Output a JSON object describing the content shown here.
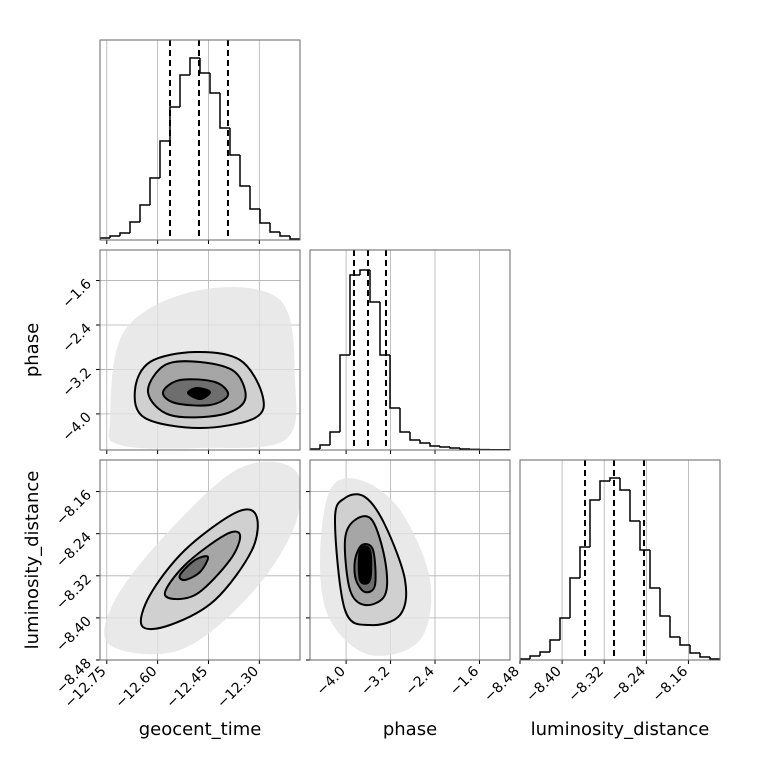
{
  "chart_data": {
    "type": "corner",
    "grid": true,
    "hist_color": "#000000",
    "quantile_color": "#000000",
    "contour_colors": [
      "#e4e4e4",
      "#d0d0d0",
      "#a6a6a6",
      "#6e6e6e",
      "#000000"
    ],
    "hist_ylim": [
      0,
      100
    ],
    "parameters": [
      {
        "name": "geocent_time",
        "lim": [
          -12.77,
          -12.18
        ],
        "ticks": [
          {
            "value": -12.75,
            "label": "−12.75"
          },
          {
            "value": -12.6,
            "label": "−12.60"
          },
          {
            "value": -12.45,
            "label": "−12.45"
          },
          {
            "value": -12.3,
            "label": "−12.30"
          }
        ],
        "bins": [
          -12.77,
          -12.7405,
          -12.711,
          -12.6815,
          -12.652,
          -12.6225,
          -12.593,
          -12.5635,
          -12.534,
          -12.5045,
          -12.475,
          -12.4455,
          -12.416,
          -12.3865,
          -12.357,
          -12.3275,
          -12.298,
          -12.2685,
          -12.239,
          -12.2095,
          -12.18
        ],
        "counts": [
          1,
          2,
          3.5,
          9,
          17.5,
          31,
          49.5,
          66.5,
          82.5,
          91,
          83.5,
          73.5,
          56,
          42.5,
          27,
          15.5,
          8.5,
          4,
          2,
          0.5
        ],
        "quantiles": [
          -12.5635,
          -12.478,
          -12.3925
        ]
      },
      {
        "name": "phase",
        "lim": [
          -4.65,
          -1.05
        ],
        "ticks": [
          {
            "value": -4.0,
            "label": "−4.0"
          },
          {
            "value": -3.2,
            "label": "−3.2"
          },
          {
            "value": -2.4,
            "label": "−2.4"
          },
          {
            "value": -1.6,
            "label": "−1.6"
          }
        ],
        "bins": [
          -4.65,
          -4.47,
          -4.29,
          -4.11,
          -3.93,
          -3.75,
          -3.57,
          -3.39,
          -3.21,
          -3.03,
          -2.85,
          -2.67,
          -2.49,
          -2.31,
          -2.13,
          -1.95,
          -1.77,
          -1.59,
          -1.41,
          -1.23,
          -1.05
        ],
        "counts": [
          0.5,
          2.5,
          9,
          47.5,
          87.5,
          90,
          74,
          47.5,
          21,
          9,
          5,
          3.5,
          2,
          1.5,
          1,
          0.5,
          0.3,
          0.2,
          0.1,
          0.1
        ],
        "quantiles": [
          -3.858,
          -3.606,
          -3.282
        ]
      },
      {
        "name": "luminosity_distance",
        "lim": [
          -8.48,
          -8.1
        ],
        "ticks": [
          {
            "value": -8.48,
            "label": "−8.48"
          },
          {
            "value": -8.4,
            "label": "−8.40"
          },
          {
            "value": -8.32,
            "label": "−8.32"
          },
          {
            "value": -8.24,
            "label": "−8.24"
          },
          {
            "value": -8.16,
            "label": "−8.16"
          }
        ],
        "bins": [
          -8.48,
          -8.461,
          -8.442,
          -8.423,
          -8.404,
          -8.385,
          -8.366,
          -8.347,
          -8.328,
          -8.309,
          -8.29,
          -8.271,
          -8.252,
          -8.233,
          -8.214,
          -8.195,
          -8.176,
          -8.157,
          -8.138,
          -8.119,
          -8.1
        ],
        "counts": [
          0.5,
          2,
          4,
          10,
          21,
          41,
          56.5,
          80,
          89.5,
          91,
          85,
          69.5,
          55,
          36,
          22,
          11.5,
          7.5,
          3.5,
          1.5,
          0.5
        ],
        "quantiles": [
          -8.3565,
          -8.3014,
          -8.2444
        ]
      }
    ],
    "pairs": [
      {
        "contours": [
          {
            "x": [
              -12.7405,
              -12.6963,
              -12.475,
              -12.239,
              -12.1948,
              -12.2243,
              -12.475,
              -12.711
            ],
            "y": [
              -4.11,
              -2.49,
              -1.77,
              -1.95,
              -3.39,
              -4.47,
              -4.614,
              -4.56
            ]
          },
          {
            "x": [
              -12.6668,
              -12.6225,
              -12.4898,
              -12.357,
              -12.291,
              -12.3128,
              -12.475,
              -12.6373
            ],
            "y": [
              -3.57,
              -3.066,
              -2.886,
              -3.03,
              -3.66,
              -4.074,
              -4.254,
              -4.074
            ]
          },
          {
            "x": [
              -12.6284,
              -12.5783,
              -12.475,
              -12.3718,
              -12.3423,
              -12.416,
              -12.5635
            ],
            "y": [
              -3.606,
              -3.12,
              -3.066,
              -3.246,
              -3.75,
              -4.02,
              -4.02
            ]
          },
          {
            "x": [
              -12.584,
              -12.534,
              -12.4308,
              -12.3924,
              -12.4455,
              -12.5488
            ],
            "y": [
              -3.606,
              -3.39,
              -3.426,
              -3.66,
              -3.84,
              -3.804
            ]
          },
          {
            "x": [
              -12.5104,
              -12.4839,
              -12.4455,
              -12.475
            ],
            "y": [
              -3.624,
              -3.534,
              -3.606,
              -3.732
            ]
          }
        ]
      },
      {
        "contours": [
          {
            "x": [
              -12.7405,
              -12.7258,
              -12.5635,
              -12.357,
              -12.1948,
              -12.1948,
              -12.3275,
              -12.534
            ],
            "y": [
              -8.4515,
              -8.366,
              -8.233,
              -8.1152,
              -8.119,
              -8.2235,
              -8.3565,
              -8.461
            ]
          },
          {
            "x": [
              -12.646,
              -12.6225,
              -12.5193,
              -12.3718,
              -12.3098,
              -12.3216,
              -12.4308,
              -12.5635
            ],
            "y": [
              -8.4154,
              -8.3565,
              -8.271,
              -8.2007,
              -8.2045,
              -8.271,
              -8.366,
              -8.4135
            ]
          },
          {
            "x": [
              -12.5783,
              -12.5193,
              -12.4013,
              -12.357,
              -12.3865,
              -12.4898
            ],
            "y": [
              -8.3565,
              -8.2995,
              -8.2425,
              -8.2425,
              -8.29,
              -8.3565
            ]
          },
          {
            "x": [
              -12.534,
              -12.4898,
              -12.4514,
              -12.475,
              -12.5193
            ],
            "y": [
              -8.3185,
              -8.29,
              -8.2843,
              -8.3128,
              -8.328
            ]
          }
        ]
      },
      {
        "contours": [
          {
            "x": [
              -4.47,
              -4.29,
              -3.75,
              -3.03,
              -2.49,
              -2.67,
              -3.57,
              -4.29
            ],
            "y": [
              -8.29,
              -8.157,
              -8.138,
              -8.195,
              -8.328,
              -8.442,
              -8.4705,
              -8.404
            ]
          },
          {
            "x": [
              -4.2,
              -4.02,
              -3.66,
              -3.3,
              -2.94,
              -3.03,
              -3.57,
              -4.02
            ],
            "y": [
              -8.214,
              -8.1722,
              -8.1703,
              -8.2235,
              -8.328,
              -8.3945,
              -8.4135,
              -8.385
            ]
          },
          {
            "x": [
              -4.02,
              -3.84,
              -3.534,
              -3.3,
              -3.3,
              -3.66,
              -3.93
            ],
            "y": [
              -8.252,
              -8.214,
              -8.214,
              -8.29,
              -8.3565,
              -8.3755,
              -8.347
            ]
          },
          {
            "x": [
              -3.84,
              -3.714,
              -3.516,
              -3.48,
              -3.66,
              -3.822
            ],
            "y": [
              -8.29,
              -8.2615,
              -8.271,
              -8.3375,
              -8.3508,
              -8.328
            ]
          },
          {
            "x": [
              -3.75,
              -3.57,
              -3.57,
              -3.75
            ],
            "y": [
              -8.271,
              -8.271,
              -8.328,
              -8.328
            ]
          }
        ]
      }
    ]
  }
}
